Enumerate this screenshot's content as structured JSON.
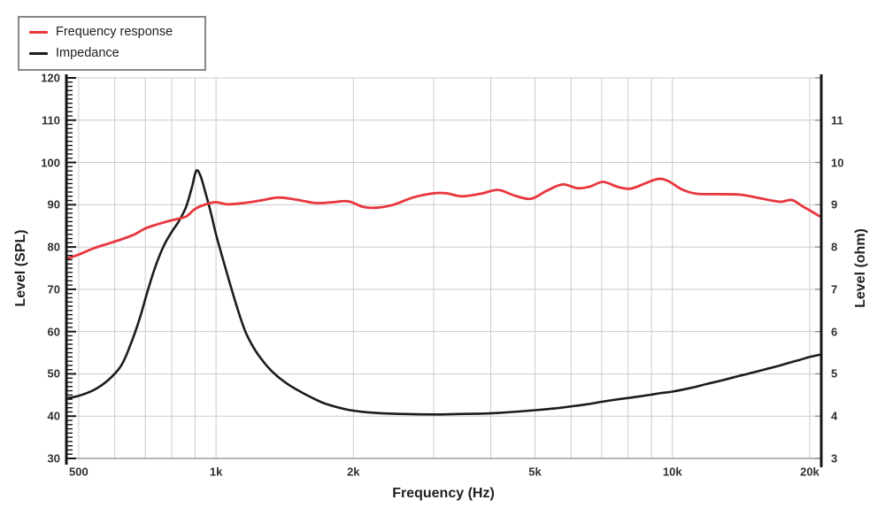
{
  "axis_titles": {
    "x": "Frequency (Hz)",
    "y_left": "Level (SPL)",
    "y_right": "Level (ohm)"
  },
  "legend": {
    "items": [
      {
        "label": "Frequency response",
        "color": "#e8363d"
      },
      {
        "label": "Impedance",
        "color": "#1c1c1c"
      }
    ]
  },
  "chart_data": {
    "type": "line",
    "title": "",
    "xlabel": "Frequency (Hz)",
    "ylabel_left": "Level (SPL)",
    "ylabel_right": "Level (ohm)",
    "x_scale": "log",
    "xlim": [
      470,
      21200
    ],
    "ylim_left": [
      30,
      120
    ],
    "ylim_right": [
      3,
      12
    ],
    "grid": true,
    "legend_position": "top-left",
    "grid_color": "#cbcbcb",
    "x_tick_labels": [
      {
        "label": "500",
        "f": 500
      },
      {
        "label": "1k",
        "f": 1000
      },
      {
        "label": "2k",
        "f": 2000
      },
      {
        "label": "5k",
        "f": 5000
      },
      {
        "label": "10k",
        "f": 10000
      },
      {
        "label": "20k",
        "f": 20000
      }
    ],
    "x_gridlines": [
      500,
      600,
      700,
      800,
      900,
      1000,
      2000,
      3000,
      4000,
      5000,
      6000,
      7000,
      8000,
      9000,
      10000,
      20000
    ],
    "y_left_ticks": [
      30,
      40,
      50,
      60,
      70,
      80,
      90,
      100,
      110,
      120
    ],
    "y_right_ticks": [
      3,
      4,
      5,
      6,
      7,
      8,
      9,
      10,
      11
    ],
    "series": [
      {
        "name": "Impedance",
        "axis": "right",
        "unit": "ohm",
        "color": "#1c1c1c",
        "points": [
          [
            470,
            4.42
          ],
          [
            500,
            4.48
          ],
          [
            540,
            4.62
          ],
          [
            580,
            4.85
          ],
          [
            620,
            5.2
          ],
          [
            650,
            5.7
          ],
          [
            680,
            6.3
          ],
          [
            710,
            7.0
          ],
          [
            740,
            7.6
          ],
          [
            770,
            8.05
          ],
          [
            800,
            8.36
          ],
          [
            830,
            8.62
          ],
          [
            860,
            8.95
          ],
          [
            885,
            9.4
          ],
          [
            905,
            9.8
          ],
          [
            925,
            9.68
          ],
          [
            950,
            9.25
          ],
          [
            975,
            8.8
          ],
          [
            1000,
            8.3
          ],
          [
            1030,
            7.8
          ],
          [
            1065,
            7.25
          ],
          [
            1110,
            6.6
          ],
          [
            1160,
            6.0
          ],
          [
            1220,
            5.55
          ],
          [
            1290,
            5.2
          ],
          [
            1360,
            4.95
          ],
          [
            1440,
            4.75
          ],
          [
            1530,
            4.58
          ],
          [
            1620,
            4.44
          ],
          [
            1720,
            4.31
          ],
          [
            1830,
            4.22
          ],
          [
            1950,
            4.15
          ],
          [
            2100,
            4.1
          ],
          [
            2300,
            4.07
          ],
          [
            2600,
            4.05
          ],
          [
            3000,
            4.04
          ],
          [
            3400,
            4.05
          ],
          [
            3800,
            4.06
          ],
          [
            4200,
            4.08
          ],
          [
            4600,
            4.11
          ],
          [
            5000,
            4.14
          ],
          [
            5500,
            4.18
          ],
          [
            6000,
            4.23
          ],
          [
            6500,
            4.28
          ],
          [
            7000,
            4.34
          ],
          [
            7500,
            4.39
          ],
          [
            8000,
            4.43
          ],
          [
            8500,
            4.47
          ],
          [
            9000,
            4.51
          ],
          [
            9500,
            4.55
          ],
          [
            10000,
            4.58
          ],
          [
            11000,
            4.67
          ],
          [
            12000,
            4.77
          ],
          [
            13000,
            4.86
          ],
          [
            14000,
            4.95
          ],
          [
            15000,
            5.03
          ],
          [
            16000,
            5.11
          ],
          [
            17000,
            5.18
          ],
          [
            18000,
            5.26
          ],
          [
            19000,
            5.33
          ],
          [
            20000,
            5.4
          ],
          [
            21000,
            5.45
          ]
        ]
      },
      {
        "name": "Frequency response",
        "axis": "left",
        "unit": "dB SPL",
        "color": "#e8363d",
        "points": [
          [
            470,
            77.2
          ],
          [
            500,
            78.2
          ],
          [
            540,
            79.7
          ],
          [
            580,
            80.8
          ],
          [
            620,
            81.8
          ],
          [
            660,
            82.9
          ],
          [
            700,
            84.4
          ],
          [
            740,
            85.3
          ],
          [
            780,
            86.0
          ],
          [
            820,
            86.6
          ],
          [
            860,
            87.2
          ],
          [
            900,
            89.0
          ],
          [
            950,
            90.1
          ],
          [
            1000,
            90.6
          ],
          [
            1060,
            90.1
          ],
          [
            1150,
            90.4
          ],
          [
            1250,
            91.0
          ],
          [
            1370,
            91.7
          ],
          [
            1500,
            91.2
          ],
          [
            1650,
            90.4
          ],
          [
            1800,
            90.6
          ],
          [
            1950,
            90.8
          ],
          [
            2100,
            89.5
          ],
          [
            2250,
            89.3
          ],
          [
            2450,
            90.0
          ],
          [
            2700,
            91.7
          ],
          [
            3000,
            92.7
          ],
          [
            3200,
            92.7
          ],
          [
            3450,
            92.0
          ],
          [
            3800,
            92.6
          ],
          [
            4150,
            93.5
          ],
          [
            4500,
            92.2
          ],
          [
            4900,
            91.4
          ],
          [
            5300,
            93.3
          ],
          [
            5750,
            94.8
          ],
          [
            6200,
            93.9
          ],
          [
            6600,
            94.3
          ],
          [
            7050,
            95.4
          ],
          [
            7600,
            94.2
          ],
          [
            8100,
            93.8
          ],
          [
            8700,
            95.0
          ],
          [
            9300,
            96.1
          ],
          [
            9800,
            95.6
          ],
          [
            10500,
            93.6
          ],
          [
            11300,
            92.6
          ],
          [
            12500,
            92.5
          ],
          [
            14000,
            92.4
          ],
          [
            15300,
            91.7
          ],
          [
            16500,
            91.0
          ],
          [
            17300,
            90.7
          ],
          [
            18300,
            91.1
          ],
          [
            19300,
            89.6
          ],
          [
            20200,
            88.4
          ],
          [
            21000,
            87.3
          ]
        ]
      }
    ]
  }
}
